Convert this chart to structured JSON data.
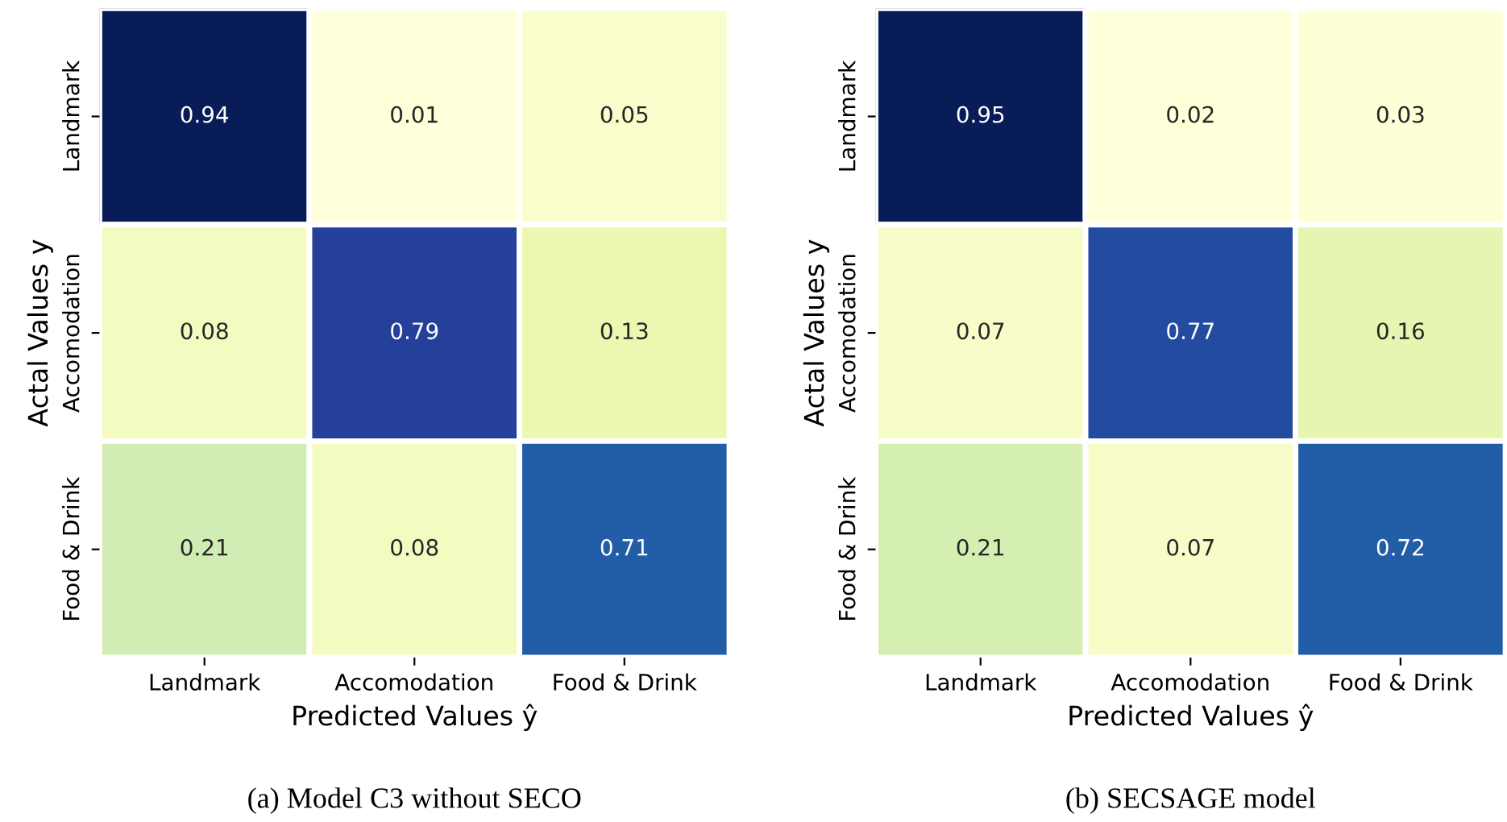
{
  "chart_data": [
    {
      "type": "heatmap",
      "title": "(a) Model C3 without SECO",
      "xlabel": "Predicted Values ŷ",
      "ylabel": "Actal Values y",
      "categories": [
        "Landmark",
        "Accomodation",
        "Food & Drink"
      ],
      "y_categories": [
        "Landmark",
        "Accomodation",
        "Food & Drink"
      ],
      "cells": [
        [
          0.94,
          0.01,
          0.05
        ],
        [
          0.08,
          0.79,
          0.13
        ],
        [
          0.21,
          0.08,
          0.71
        ]
      ],
      "data_labels": true
    },
    {
      "type": "heatmap",
      "title": "(b) SECSAGE model",
      "xlabel": "Predicted Values ŷ",
      "ylabel": "Actal Values y",
      "categories": [
        "Landmark",
        "Accomodation",
        "Food & Drink"
      ],
      "y_categories": [
        "Landmark",
        "Accomodation",
        "Food & Drink"
      ],
      "cells": [
        [
          0.95,
          0.02,
          0.03
        ],
        [
          0.07,
          0.77,
          0.16
        ],
        [
          0.21,
          0.07,
          0.72
        ]
      ],
      "data_labels": true
    }
  ]
}
